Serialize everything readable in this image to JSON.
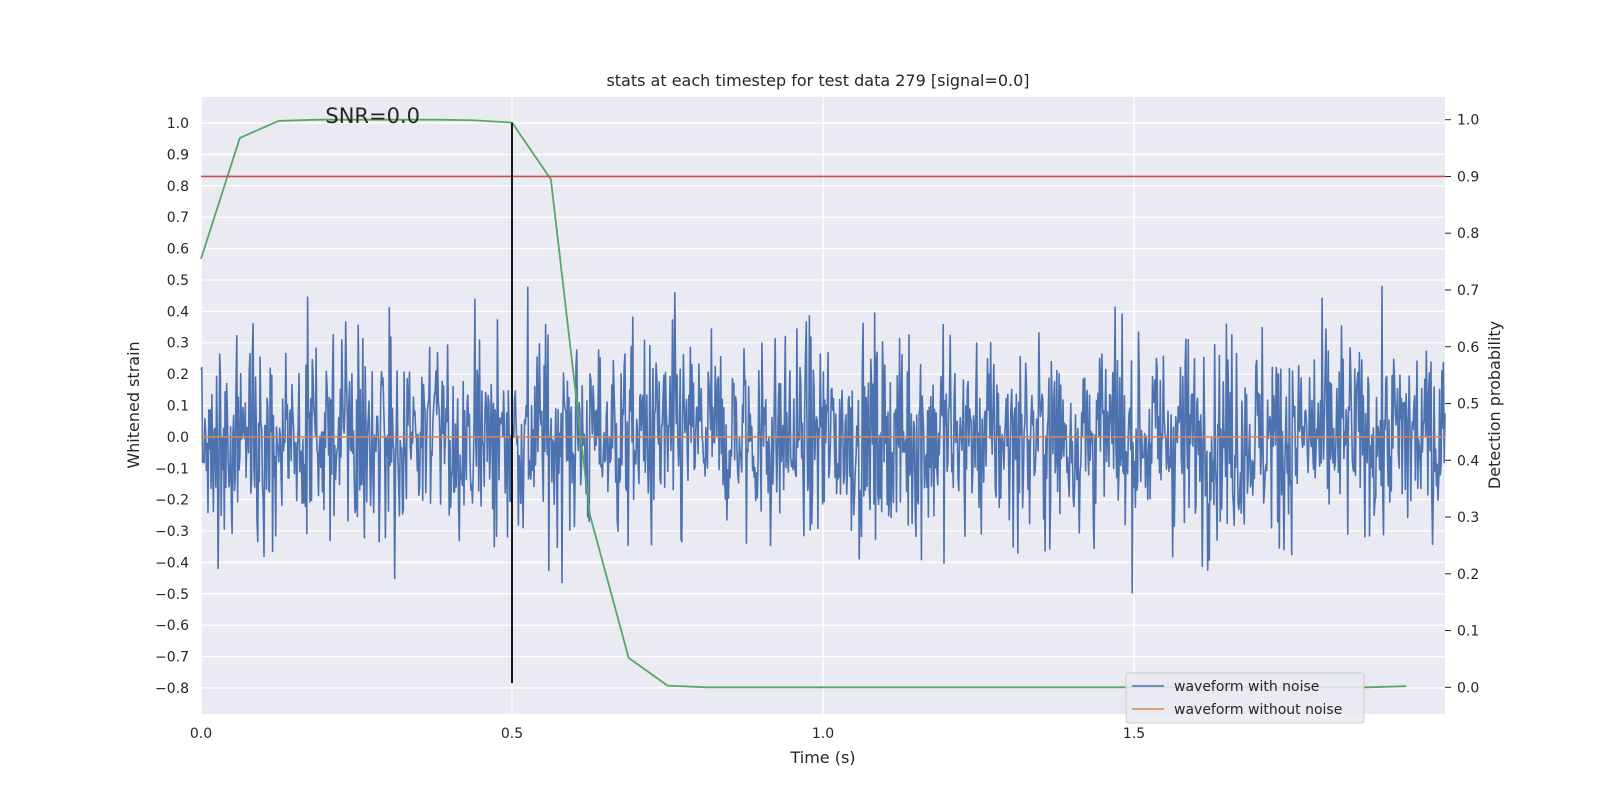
{
  "chart_data": {
    "type": "line",
    "title": "stats at each timestep for test data 279 [signal=0.0]",
    "xlabel": "Time (s)",
    "ylabel": "Whitened strain",
    "y2label": "Detection probability",
    "xlim": [
      0.0,
      2.0
    ],
    "ylim": [
      -0.883,
      1.083
    ],
    "y2lim": [
      -0.047,
      1.04
    ],
    "x_ticks": [
      0.0,
      0.5,
      1.0,
      1.5
    ],
    "x_tick_labels": [
      "0.0",
      "0.5",
      "1.0",
      "1.5"
    ],
    "y_ticks": [
      1.0,
      0.9,
      0.8,
      0.7,
      0.6,
      0.5,
      0.4,
      0.3,
      0.2,
      0.1,
      0.0,
      -0.1,
      -0.2,
      -0.3,
      -0.4,
      -0.5,
      -0.6,
      -0.7,
      -0.8
    ],
    "y_tick_labels": [
      "1.0",
      "0.9",
      "0.8",
      "0.7",
      "0.6",
      "0.5",
      "0.4",
      "0.3",
      "0.2",
      "0.1",
      "0.0",
      "−0.1",
      "−0.2",
      "−0.3",
      "−0.4",
      "−0.5",
      "−0.6",
      "−0.7",
      "−0.8"
    ],
    "y2_ticks": [
      1.0,
      0.9,
      0.8,
      0.7,
      0.6,
      0.5,
      0.4,
      0.3,
      0.2,
      0.1,
      0.0
    ],
    "y2_tick_labels": [
      "1.0",
      "0.9",
      "0.8",
      "0.7",
      "0.6",
      "0.5",
      "0.4",
      "0.3",
      "0.2",
      "0.1",
      "0.0"
    ],
    "grid": true,
    "legend_position": "bottom-right",
    "series": [
      {
        "name": "waveform with noise",
        "color": "#4c72b0",
        "axis": "left",
        "kind": "noise",
        "samples": 1600,
        "seed": 279,
        "amplitude_range": [
          -0.78,
          1.0
        ]
      },
      {
        "name": "waveform without noise",
        "color": "#dd8452",
        "axis": "left",
        "x": [
          0.0,
          2.0
        ],
        "values": [
          0.0,
          0.0
        ]
      },
      {
        "color": "#55a868",
        "axis": "right",
        "x": [
          0.0,
          0.0625,
          0.125,
          0.1875,
          0.25,
          0.3125,
          0.375,
          0.4375,
          0.5,
          0.5625,
          0.625,
          0.6875,
          0.75,
          0.8125,
          0.875,
          0.9375,
          1.0,
          1.0625,
          1.125,
          1.1875,
          1.25,
          1.3125,
          1.375,
          1.4375,
          1.5,
          1.5625,
          1.625,
          1.6875,
          1.75,
          1.8125,
          1.875,
          1.9375
        ],
        "values": [
          0.755,
          0.968,
          0.998,
          1.0,
          1.0,
          1.0,
          1.0,
          0.999,
          0.995,
          0.895,
          0.305,
          0.052,
          0.003,
          0.0,
          0.0,
          0.0,
          0.0,
          0.0,
          0.0,
          0.0,
          0.0,
          0.0,
          0.0,
          0.0,
          0.0,
          0.0,
          0.0,
          0.0,
          0.0,
          0.0,
          0.0,
          0.002
        ]
      }
    ],
    "threshold": {
      "color": "#c44e52",
      "axis": "right",
      "value": 0.9
    },
    "marker": {
      "color": "#000000",
      "x": 0.5,
      "y_range": [
        -0.785,
        1.0
      ]
    },
    "annotations": [
      {
        "text": "SNR=0.0",
        "x": 0.2,
        "y": 1.0
      }
    ]
  }
}
